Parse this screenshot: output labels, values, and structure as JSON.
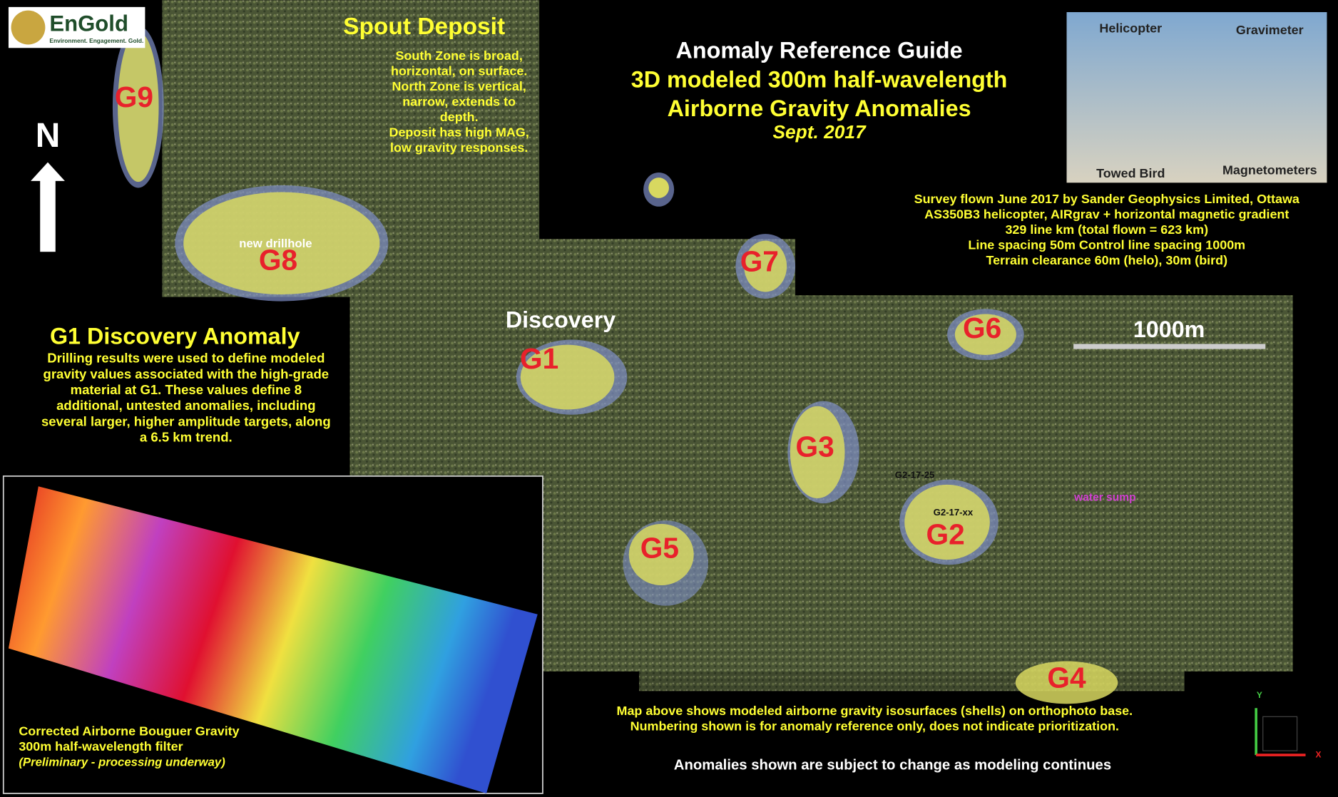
{
  "logo": {
    "name": "EnGold",
    "tagline": "Environment. Engagement. Gold."
  },
  "north": "N",
  "spout": {
    "title": "Spout Deposit",
    "notes": [
      "South Zone is broad,",
      "horizontal, on surface.",
      "North Zone is vertical,",
      "narrow, extends to",
      "depth.",
      "Deposit has high MAG,",
      "low gravity responses."
    ],
    "drillhole": "new drillhole"
  },
  "title": {
    "lines": [
      "Anomaly Reference Guide",
      "3D modeled 300m half-wavelength",
      "Airborne Gravity Anomalies"
    ],
    "date": "Sept. 2017"
  },
  "photo": {
    "labels": [
      "Helicopter",
      "Gravimeter",
      "Towed Bird",
      "Magnetometers"
    ]
  },
  "survey": [
    "Survey flown June 2017 by Sander Geophysics Limited, Ottawa",
    "AS350B3 helicopter, AIRgrav + horizontal magnetic gradient",
    "329 line km (total flown = 623 km)",
    "Line spacing 50m  Control line spacing 1000m",
    "Terrain clearance 60m (helo), 30m (bird)"
  ],
  "anomalies": [
    "G1",
    "G2",
    "G3",
    "G4",
    "G5",
    "G6",
    "G7",
    "G8",
    "G9"
  ],
  "map": {
    "discovery": "Discovery",
    "scale": "1000m",
    "holes": [
      "G2-17-25",
      "G2-17-xx"
    ],
    "sump": "water sump"
  },
  "g1": {
    "title": "G1 Discovery Anomaly",
    "lines": [
      "Drilling results were used to define modeled",
      "gravity values associated with the high-grade",
      "material at G1.  These values define 8",
      "additional, untested anomalies, including",
      "several larger, higher amplitude targets, along",
      "a 6.5 km trend."
    ]
  },
  "gravity": {
    "lines": [
      "Corrected Airborne Bouguer Gravity",
      "300m half-wavelength filter"
    ],
    "note": "(Preliminary - processing underway)"
  },
  "footer": {
    "lines": [
      "Map above shows modeled airborne gravity isosurfaces (shells) on orthophoto base.",
      "Numbering shown is for anomaly reference only, does not indicate prioritization."
    ],
    "caveat": "Anomalies  shown  are subject to change as modeling  continues"
  },
  "axes": {
    "y": "Y",
    "x": "X"
  }
}
